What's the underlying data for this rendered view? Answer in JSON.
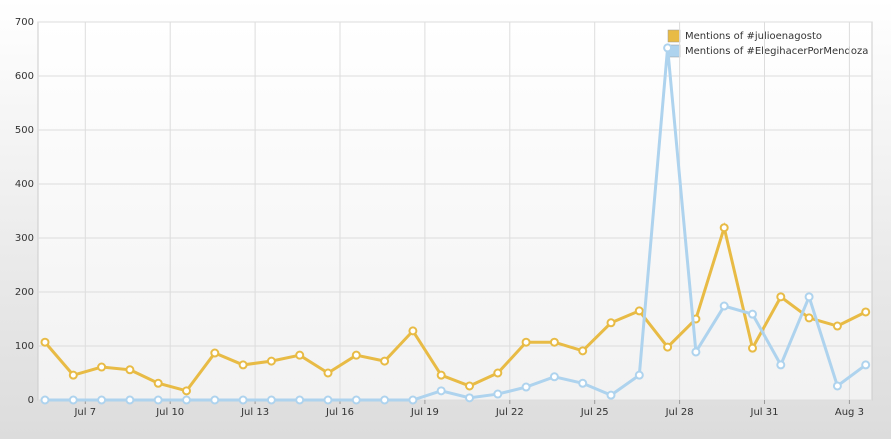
{
  "chart_data": {
    "type": "line",
    "categories": [
      null,
      "Jul 7",
      null,
      null,
      "Jul 10",
      null,
      null,
      "Jul 13",
      null,
      null,
      "Jul 16",
      null,
      null,
      "Jul 19",
      null,
      null,
      "Jul 22",
      null,
      null,
      "Jul 25",
      null,
      null,
      "Jul 28",
      null,
      null,
      "Jul 31",
      null,
      null,
      "Aug 3",
      null
    ],
    "series": [
      {
        "name": "Mentions of #julioenagosto",
        "color": "#e8bb45",
        "values": [
          107,
          46,
          61,
          56,
          31,
          17,
          87,
          65,
          72,
          83,
          50,
          83,
          72,
          128,
          46,
          26,
          50,
          107,
          107,
          91,
          143,
          165,
          98,
          150,
          319,
          96,
          191,
          152,
          137,
          163
        ]
      },
      {
        "name": "Mentions of #ElegihacerPorMendoza",
        "color": "#aed3ee",
        "values": [
          0,
          0,
          0,
          0,
          0,
          0,
          0,
          0,
          0,
          0,
          0,
          0,
          0,
          0,
          17,
          4,
          11,
          24,
          43,
          31,
          9,
          46,
          652,
          89,
          174,
          159,
          65,
          191,
          26,
          65
        ]
      }
    ],
    "ylim": [
      0,
      700
    ],
    "yticks": [
      0,
      100,
      200,
      300,
      400,
      500,
      600,
      700
    ],
    "grid": true,
    "legend": "top-right"
  }
}
